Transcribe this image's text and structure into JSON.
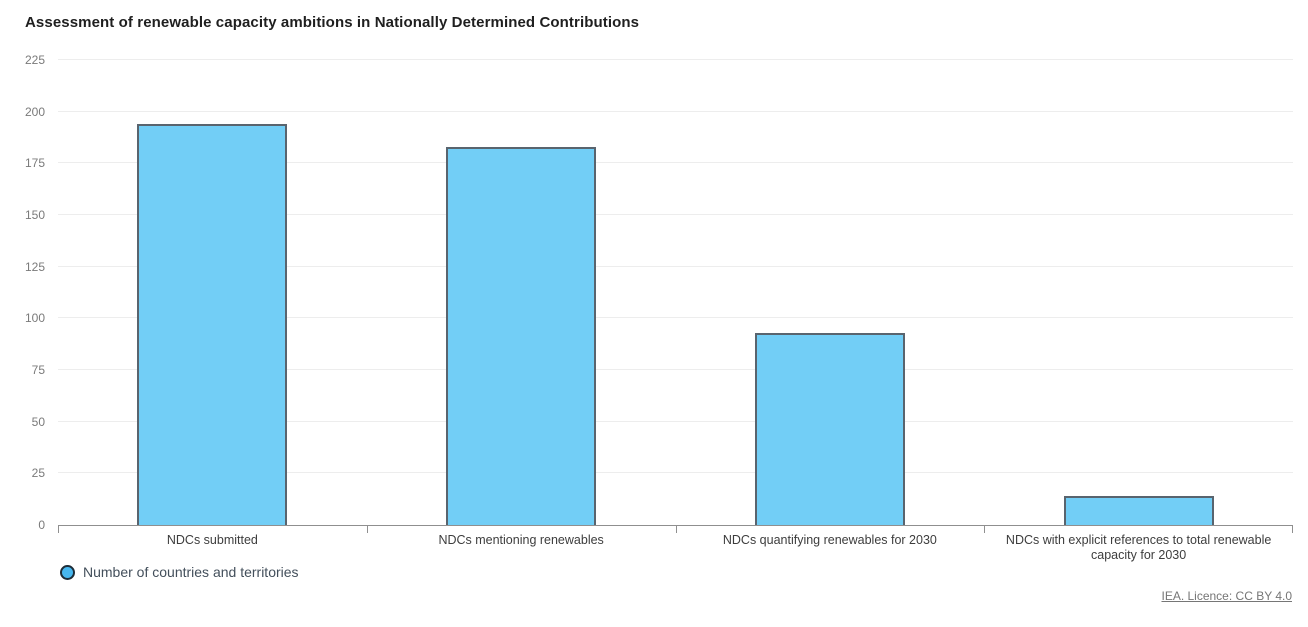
{
  "title": "Assessment of renewable capacity ambitions in Nationally Determined Contributions",
  "chart_data": {
    "type": "bar",
    "title": "Assessment of renewable capacity ambitions in Nationally Determined Contributions",
    "categories": [
      "NDCs submitted",
      "NDCs mentioning renewables",
      "NDCs quantifying renewables for 2030",
      "NDCs with explicit references to total renewable capacity for 2030"
    ],
    "series": [
      {
        "name": "Number of countries and territories",
        "values": [
          194,
          183,
          93,
          14
        ]
      }
    ],
    "xlabel": "",
    "ylabel": "",
    "ylim": [
      0,
      225
    ],
    "yticks": [
      0,
      25,
      50,
      75,
      100,
      125,
      150,
      175,
      200,
      225
    ],
    "grid": true,
    "legend_position": "bottom-left"
  },
  "legend": {
    "marker": "circle-icon",
    "label": "Number of countries and territories"
  },
  "footer": {
    "license_link": "IEA. Licence: CC BY 4.0"
  },
  "colors": {
    "bar_fill": "#72CEF6",
    "bar_border": "#59646e",
    "legend_marker_fill": "#47B7EF",
    "legend_marker_border": "#1e2d38",
    "gridline": "#ededed",
    "axis": "#8f8f8f",
    "title_text": "#1f1f1f",
    "ytick_text": "#7a7a7a",
    "category_text": "#3d3d3d",
    "legend_text": "#434f5b",
    "footer_text": "#767676"
  }
}
